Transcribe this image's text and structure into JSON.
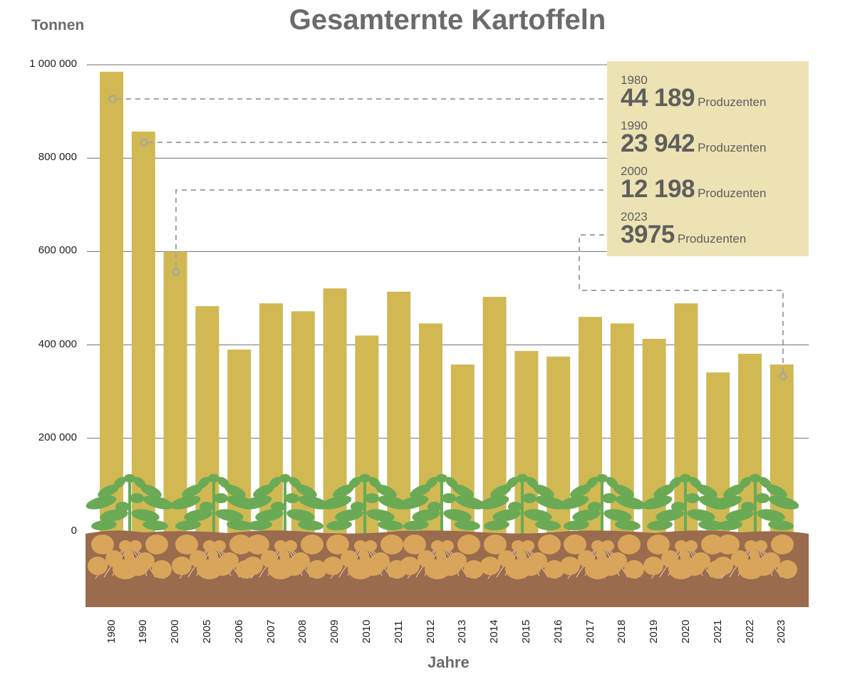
{
  "chart_data": {
    "type": "bar",
    "title": "Gesamternte Kartoffeln",
    "xlabel": "Jahre",
    "ylabel": "Tonnen",
    "ylim": [
      0,
      1000000
    ],
    "yticks": [
      "0",
      "200000",
      "400000",
      "600000",
      "800000",
      "1000000"
    ],
    "ytick_labels": [
      "0",
      "200 000",
      "400 000",
      "600 000",
      "800 000",
      "1 000 000"
    ],
    "grid": true,
    "categories": [
      "1980",
      "1990",
      "2000",
      "2005",
      "2006",
      "2007",
      "2008",
      "2009",
      "2010",
      "2011",
      "2012",
      "2013",
      "2014",
      "2015",
      "2016",
      "2017",
      "2018",
      "2019",
      "2020",
      "2021",
      "2022",
      "2023"
    ],
    "values": [
      985000,
      857000,
      600000,
      483000,
      390000,
      489000,
      472000,
      521000,
      420000,
      514000,
      446000,
      358000,
      503000,
      387000,
      375000,
      460000,
      446000,
      413000,
      489000,
      341000,
      381000,
      358000
    ],
    "bar_color": "#d1b853",
    "annotations": [
      {
        "year": "1980",
        "value": "44 189",
        "unit": "Produzenten"
      },
      {
        "year": "1990",
        "value": "23 942",
        "unit": "Produzenten"
      },
      {
        "year": "2000",
        "value": "12 198",
        "unit": "Produzenten"
      },
      {
        "year": "2023",
        "value": "3975",
        "unit": "Produzenten"
      }
    ]
  },
  "colors": {
    "bar": "#d1b853",
    "soil": "#9b6b4e",
    "potato": "#d9a55a",
    "leaf": "#6aaa55",
    "callout_bg": "#ede2b3",
    "text": "#6b6b6b",
    "grid": "#6f6f6f",
    "leader": "#a5a5a5"
  }
}
